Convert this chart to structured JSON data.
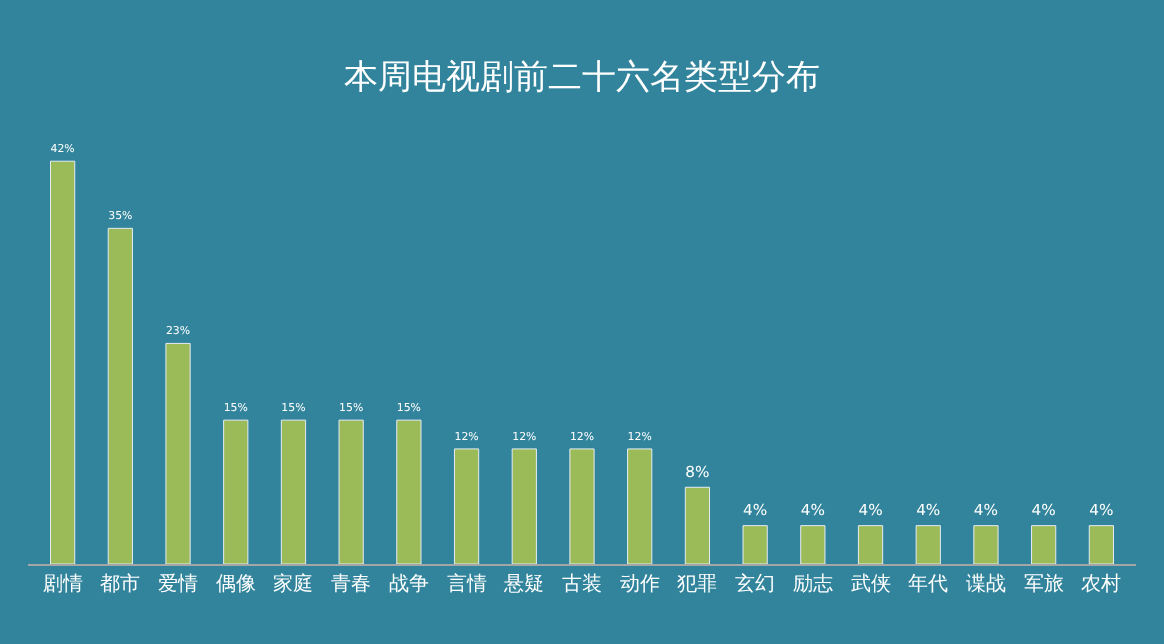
{
  "chart_data": {
    "type": "bar",
    "title": "本周电视剧前二十六名类型分布",
    "categories": [
      "剧情",
      "都市",
      "爱情",
      "偶像",
      "家庭",
      "青春",
      "战争",
      "言情",
      "悬疑",
      "古装",
      "动作",
      "犯罪",
      "玄幻",
      "励志",
      "武侠",
      "年代",
      "谍战",
      "军旅",
      "农村"
    ],
    "values": [
      42,
      35,
      23,
      15,
      15,
      15,
      15,
      12,
      12,
      12,
      12,
      8,
      4,
      4,
      4,
      4,
      4,
      4,
      4
    ],
    "value_labels": [
      "42%",
      "35%",
      "23%",
      "15%",
      "15%",
      "15%",
      "15%",
      "12%",
      "12%",
      "12%",
      "12%",
      "8%",
      "4%",
      "4%",
      "4%",
      "4%",
      "4%",
      "4%",
      "4%"
    ],
    "color": "#9bbb59",
    "grid": false,
    "legend": false
  }
}
